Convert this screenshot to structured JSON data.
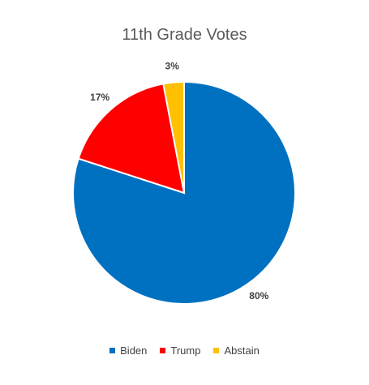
{
  "chart_data": {
    "type": "pie",
    "title": "11th Grade Votes",
    "categories": [
      "Biden",
      "Trump",
      "Abstain"
    ],
    "values": [
      80,
      17,
      3
    ],
    "labels": [
      "80%",
      "17%",
      "3%"
    ],
    "colors": [
      "#0070C0",
      "#FF0000",
      "#FFC000"
    ],
    "legend_position": "bottom",
    "start_angle_deg": 0,
    "direction": "clockwise"
  }
}
